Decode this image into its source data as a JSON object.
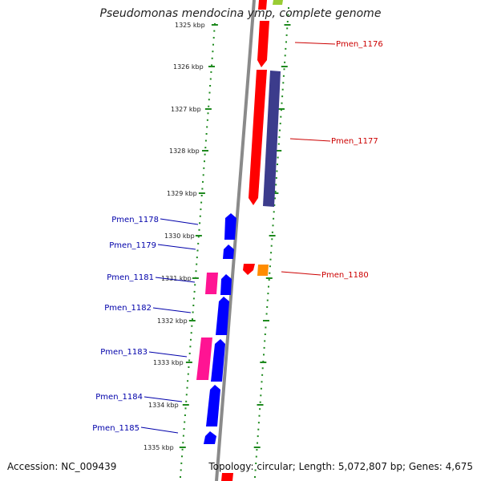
{
  "title": "Pseudomonas mendocina ymp, complete genome",
  "footer": {
    "accession": "Accession: NC_009439",
    "summary": "Topology: circular; Length: 5,072,807 bp; Genes: 4,675"
  },
  "colors": {
    "dots": "#1f8a1f",
    "backbone": "#8a8a8a",
    "forward_label": "#cc0000",
    "reverse_label": "#0000aa",
    "red": "#ff0000",
    "navy": "#3c3c8c",
    "blue": "#0000ff",
    "pink": "#ff1493",
    "orange": "#ff8c00",
    "lime": "#99cc33"
  },
  "ticks": [
    {
      "kbp": 1325,
      "label": "1325 kbp"
    },
    {
      "kbp": 1326,
      "label": "1326 kbp"
    },
    {
      "kbp": 1327,
      "label": "1327 kbp"
    },
    {
      "kbp": 1328,
      "label": "1328 kbp"
    },
    {
      "kbp": 1329,
      "label": "1329 kbp"
    },
    {
      "kbp": 1330,
      "label": "1330 kbp"
    },
    {
      "kbp": 1331,
      "label": "1331 kbp"
    },
    {
      "kbp": 1332,
      "label": "1332 kbp"
    },
    {
      "kbp": 1333,
      "label": "1333 kbp"
    },
    {
      "kbp": 1334,
      "label": "1334 kbp"
    },
    {
      "kbp": 1335,
      "label": "1335 kbp"
    }
  ],
  "forward_labels": [
    "Pmen_1176",
    "Pmen_1177",
    "Pmen_1180"
  ],
  "reverse_labels": [
    "Pmen_1178",
    "Pmen_1179",
    "Pmen_1181",
    "Pmen_1182",
    "Pmen_1183",
    "Pmen_1184",
    "Pmen_1185"
  ]
}
